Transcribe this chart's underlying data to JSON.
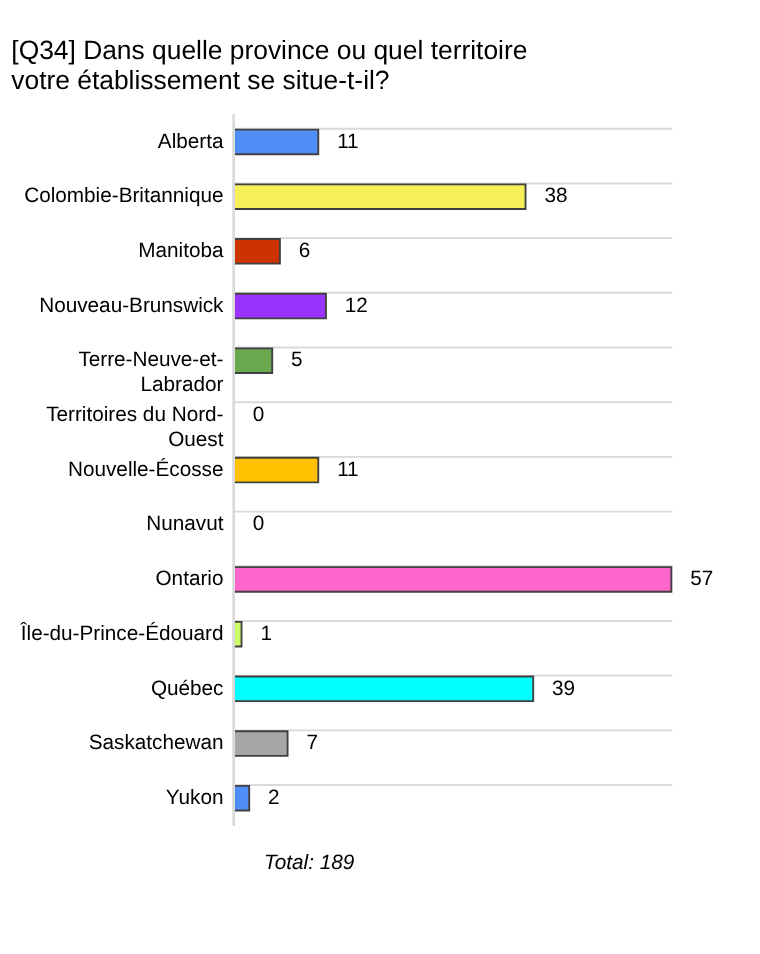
{
  "chart_data": {
    "type": "bar",
    "orientation": "horizontal",
    "title": "[Q34] Dans quelle province ou quel territoire votre établissement se situe-t-il?",
    "categories": [
      "Alberta",
      "Colombie-Britannique",
      "Manitoba",
      "Nouveau-Brunswick",
      "Terre-Neuve-et-Labrador",
      "Territoires du Nord-Ouest",
      "Nouvelle-Écosse",
      "Nunavut",
      "Ontario",
      "Île-du-Prince-Édouard",
      "Québec",
      "Saskatchewan",
      "Yukon"
    ],
    "values": [
      11,
      38,
      6,
      12,
      5,
      0,
      11,
      0,
      57,
      1,
      39,
      7,
      2
    ],
    "colors": [
      "#4f8ef7",
      "#f7f059",
      "#cc3300",
      "#9933ff",
      "#6aa84f",
      null,
      "#ffc000",
      null,
      "#ff66cc",
      "#ccff66",
      "#00ffff",
      "#a6a6a6",
      "#4f8ef7"
    ],
    "data_labels": true,
    "grid": "y",
    "annotations": [
      "Total: 189"
    ]
  }
}
